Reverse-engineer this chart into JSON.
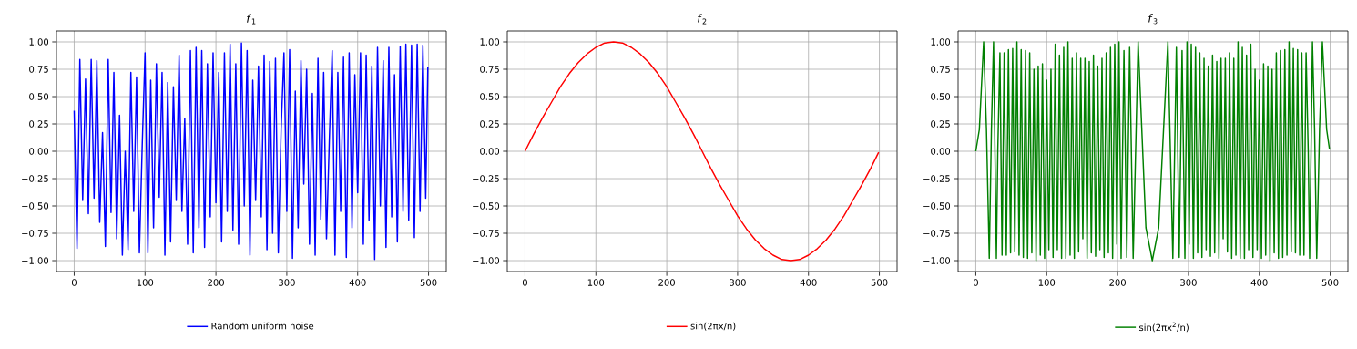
{
  "chart_data": [
    {
      "type": "line",
      "title": "*f*$_{1}$",
      "x": [
        0,
        4,
        8,
        12,
        16,
        20,
        24,
        28,
        32,
        36,
        40,
        44,
        48,
        52,
        56,
        60,
        64,
        68,
        72,
        76,
        80,
        84,
        88,
        92,
        96,
        100,
        104,
        108,
        112,
        116,
        120,
        124,
        128,
        132,
        136,
        140,
        144,
        148,
        152,
        156,
        160,
        164,
        168,
        172,
        176,
        180,
        184,
        188,
        192,
        196,
        200,
        204,
        208,
        212,
        216,
        220,
        224,
        228,
        232,
        236,
        240,
        244,
        248,
        252,
        256,
        260,
        264,
        268,
        272,
        276,
        280,
        284,
        288,
        292,
        296,
        300,
        304,
        308,
        312,
        316,
        320,
        324,
        328,
        332,
        336,
        340,
        344,
        348,
        352,
        356,
        360,
        364,
        368,
        372,
        376,
        380,
        384,
        388,
        392,
        396,
        400,
        404,
        408,
        412,
        416,
        420,
        424,
        428,
        432,
        436,
        440,
        444,
        448,
        452,
        456,
        460,
        464,
        468,
        472,
        476,
        480,
        484,
        488,
        492,
        496,
        499
      ],
      "series": [
        {
          "name": "Random uniform noise",
          "color": "#0000ff",
          "values": [
            0.37,
            -0.89,
            0.84,
            -0.45,
            0.66,
            -0.57,
            0.84,
            -0.43,
            0.83,
            -0.65,
            0.17,
            -0.87,
            0.84,
            -0.56,
            0.72,
            -0.8,
            0.33,
            -0.95,
            0.0,
            -0.9,
            0.72,
            -0.55,
            0.68,
            -0.93,
            0.05,
            0.9,
            -0.93,
            0.65,
            -0.7,
            0.8,
            -0.42,
            0.72,
            -0.95,
            0.63,
            -0.83,
            0.59,
            -0.45,
            0.88,
            -0.55,
            0.3,
            -0.85,
            0.92,
            -0.93,
            0.95,
            -0.7,
            0.92,
            -0.88,
            0.8,
            -0.6,
            0.9,
            -0.47,
            0.72,
            -0.83,
            0.9,
            -0.55,
            0.98,
            -0.72,
            0.8,
            -0.85,
            0.99,
            -0.5,
            0.92,
            -0.95,
            0.65,
            -0.45,
            0.78,
            -0.6,
            0.88,
            -0.9,
            0.82,
            -0.75,
            0.85,
            -0.93,
            0.2,
            0.9,
            -0.55,
            0.93,
            -0.98,
            0.55,
            -0.7,
            0.83,
            -0.3,
            0.75,
            -0.85,
            0.53,
            -0.95,
            0.85,
            -0.62,
            0.72,
            -0.8,
            0.1,
            0.92,
            -0.95,
            0.72,
            -0.55,
            0.86,
            -0.97,
            0.9,
            -0.7,
            0.7,
            -0.38,
            0.9,
            -0.85,
            0.88,
            -0.63,
            0.78,
            -0.99,
            0.95,
            -0.5,
            0.83,
            -0.88,
            0.95,
            -0.6,
            0.7,
            -0.83,
            0.96,
            -0.55,
            0.98,
            -0.63,
            0.97,
            -0.79,
            0.98,
            -0.55,
            0.97,
            -0.43,
            0.77
          ]
        }
      ],
      "xlim": [
        -25,
        525
      ],
      "ylim": [
        -1.1,
        1.1
      ],
      "xticks": [
        0,
        100,
        200,
        300,
        400,
        500
      ],
      "yticks": [
        {
          "value": -1,
          "label": "−1.00"
        },
        {
          "value": -0.75,
          "label": "−0.75"
        },
        {
          "value": -0.5,
          "label": "−0.50"
        },
        {
          "value": -0.25,
          "label": "−0.25"
        },
        {
          "value": 0,
          "label": "0.00"
        },
        {
          "value": 0.25,
          "label": "0.25"
        },
        {
          "value": 0.5,
          "label": "0.50"
        },
        {
          "value": 0.75,
          "label": "0.75"
        },
        {
          "value": 1,
          "label": "1.00"
        }
      ],
      "grid": true,
      "legend": "bottom"
    },
    {
      "type": "line",
      "title": "*f*$_{2}$",
      "x": [
        0,
        12.5,
        25,
        37.5,
        50,
        62.5,
        75,
        87.5,
        100,
        112.5,
        125,
        137.5,
        150,
        162.5,
        175,
        187.5,
        200,
        212.5,
        225,
        237.5,
        250,
        262.5,
        275,
        287.5,
        300,
        312.5,
        325,
        337.5,
        350,
        362.5,
        375,
        387.5,
        400,
        412.5,
        425,
        437.5,
        450,
        462.5,
        475,
        487.5,
        499
      ],
      "series": [
        {
          "name": "sin(2πx/n)",
          "color": "#ff0000",
          "values": [
            0,
            0.16,
            0.31,
            0.45,
            0.59,
            0.71,
            0.81,
            0.89,
            0.95,
            0.99,
            1,
            0.99,
            0.95,
            0.89,
            0.81,
            0.71,
            0.59,
            0.45,
            0.31,
            0.16,
            0,
            -0.16,
            -0.31,
            -0.45,
            -0.59,
            -0.71,
            -0.81,
            -0.89,
            -0.95,
            -0.99,
            -1,
            -0.99,
            -0.95,
            -0.89,
            -0.81,
            -0.71,
            -0.59,
            -0.45,
            -0.31,
            -0.16,
            -0.01
          ]
        }
      ],
      "xlim": [
        -25,
        525
      ],
      "ylim": [
        -1.1,
        1.1
      ],
      "xticks": [
        0,
        100,
        200,
        300,
        400,
        500
      ],
      "yticks": [
        {
          "value": -1,
          "label": "−1.00"
        },
        {
          "value": -0.75,
          "label": "−0.75"
        },
        {
          "value": -0.5,
          "label": "−0.50"
        },
        {
          "value": -0.25,
          "label": "−0.25"
        },
        {
          "value": 0,
          "label": "0.00"
        },
        {
          "value": 0.25,
          "label": "0.25"
        },
        {
          "value": 0.5,
          "label": "0.50"
        },
        {
          "value": 0.75,
          "label": "0.75"
        },
        {
          "value": 1,
          "label": "1.00"
        }
      ],
      "grid": true,
      "legend": "bottom"
    },
    {
      "type": "line",
      "title": "*f*$_{3}$",
      "x": [
        0,
        5,
        11,
        15,
        19,
        22,
        25,
        27,
        29,
        31,
        34,
        37,
        40,
        43,
        46,
        49,
        52,
        55,
        58,
        61,
        64,
        67,
        70,
        73,
        76,
        79,
        82,
        85,
        88,
        91,
        94,
        97,
        100,
        103,
        106,
        109,
        112,
        115,
        118,
        121,
        124,
        127,
        130,
        133,
        136,
        139,
        142,
        145,
        148,
        151,
        154,
        157,
        160,
        163,
        166,
        169,
        172,
        175,
        178,
        181,
        184,
        187,
        190,
        193,
        196,
        199,
        202,
        205,
        209,
        213,
        217,
        222,
        229,
        240,
        249,
        258,
        271,
        278,
        283,
        287,
        291,
        295,
        298,
        301,
        304,
        307,
        310,
        313,
        316,
        319,
        322,
        325,
        328,
        331,
        334,
        337,
        340,
        343,
        346,
        349,
        352,
        355,
        358,
        361,
        364,
        367,
        370,
        373,
        376,
        379,
        382,
        385,
        388,
        391,
        394,
        397,
        400,
        403,
        406,
        409,
        412,
        415,
        418,
        421,
        424,
        427,
        430,
        433,
        436,
        439,
        442,
        445,
        448,
        451,
        454,
        457,
        460,
        463,
        466,
        469,
        471,
        473,
        475,
        478,
        481,
        485,
        489,
        495,
        499
      ],
      "series": [
        {
          "name": "sin(2πx$^{2}$/n)",
          "color": "#008000",
          "values": [
            0,
            0.2,
            1,
            0.2,
            -0.98,
            0.2,
            1,
            0,
            -0.98,
            0,
            0.9,
            -0.95,
            0.9,
            -0.95,
            0.93,
            -0.93,
            0.94,
            -0.92,
            1,
            -0.95,
            0.93,
            -0.97,
            0.92,
            -0.98,
            0.9,
            -0.93,
            0.75,
            -1,
            0.78,
            -0.95,
            0.8,
            -0.98,
            0.65,
            -0.9,
            0.75,
            -0.97,
            0.98,
            -0.9,
            0.88,
            -0.98,
            0.95,
            -0.98,
            1,
            -0.95,
            0.85,
            -0.98,
            0.9,
            -0.92,
            0.85,
            -0.8,
            0.85,
            -0.98,
            0.82,
            -0.93,
            0.88,
            -0.96,
            0.78,
            -0.9,
            0.85,
            -0.97,
            0.9,
            -0.93,
            0.95,
            -0.98,
            0.98,
            -0.85,
            1,
            -0.98,
            0.92,
            -0.97,
            0.95,
            -0.98,
            1,
            -0.7,
            -1,
            -0.7,
            1,
            -0.98,
            0.95,
            -0.97,
            0.92,
            -0.98,
            1,
            -0.85,
            0.98,
            -0.98,
            0.95,
            -0.93,
            0.9,
            -0.97,
            0.85,
            -0.9,
            0.78,
            -0.96,
            0.88,
            -0.93,
            0.82,
            -0.98,
            0.85,
            -0.8,
            0.85,
            -0.92,
            0.9,
            -0.98,
            0.85,
            -0.95,
            1,
            -0.98,
            0.95,
            -0.98,
            0.88,
            -0.9,
            0.98,
            -0.97,
            0.75,
            -0.9,
            0.65,
            -0.98,
            0.8,
            -0.95,
            0.78,
            -1,
            0.75,
            -0.93,
            0.9,
            -0.98,
            0.92,
            -0.97,
            0.93,
            -0.95,
            1,
            -0.92,
            0.94,
            -0.93,
            0.93,
            -0.95,
            0.9,
            -0.95,
            0.9,
            0,
            -0.98,
            0,
            1,
            0.2,
            -0.98,
            0.2,
            1,
            0.2,
            0.02
          ]
        }
      ],
      "xlim": [
        -25,
        525
      ],
      "ylim": [
        -1.1,
        1.1
      ],
      "xticks": [
        0,
        100,
        200,
        300,
        400,
        500
      ],
      "yticks": [
        {
          "value": -1,
          "label": "−1.00"
        },
        {
          "value": -0.75,
          "label": "−0.75"
        },
        {
          "value": -0.5,
          "label": "−0.50"
        },
        {
          "value": -0.25,
          "label": "−0.25"
        },
        {
          "value": 0,
          "label": "0.00"
        },
        {
          "value": 0.25,
          "label": "0.25"
        },
        {
          "value": 0.5,
          "label": "0.50"
        },
        {
          "value": 0.75,
          "label": "0.75"
        },
        {
          "value": 1,
          "label": "1.00"
        }
      ],
      "grid": true,
      "legend": "bottom"
    }
  ]
}
